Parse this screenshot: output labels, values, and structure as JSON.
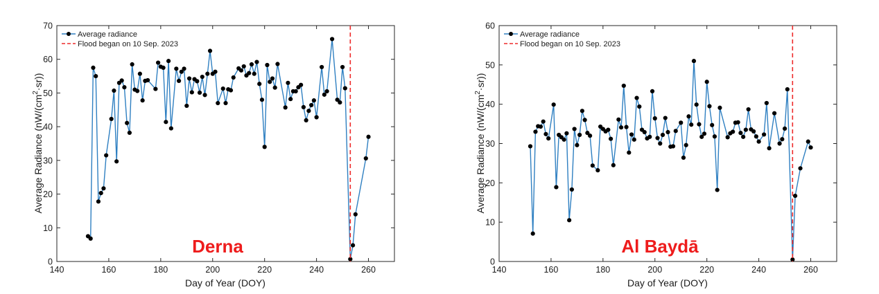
{
  "chart_data": [
    {
      "type": "line",
      "place_label": "Derna",
      "xlabel": "Day of Year (DOY)",
      "ylabel_main": "Average Radiance (nW/(cm",
      "ylabel_sup": "2",
      "ylabel_end": "·sr))",
      "xlim": [
        140,
        270
      ],
      "ylim": [
        0,
        70
      ],
      "xticks": [
        140,
        160,
        180,
        200,
        220,
        240,
        260
      ],
      "yticks": [
        0,
        10,
        20,
        30,
        40,
        50,
        60,
        70
      ],
      "legend": {
        "position": "top-left",
        "series_label": "Average radiance",
        "event_label": "Flood began on 10 Sep. 2023"
      },
      "event_x": 253,
      "series": [
        {
          "name": "Average radiance",
          "x": [
            152,
            153,
            154,
            155,
            156,
            157,
            158,
            159,
            161,
            162,
            163,
            164,
            165,
            166,
            167,
            168,
            169,
            170,
            171,
            172,
            173,
            174,
            175,
            178,
            179,
            180,
            181,
            182,
            183,
            184,
            186,
            187,
            188,
            189,
            190,
            191,
            192,
            193,
            194,
            195,
            196,
            197,
            198,
            199,
            200,
            201,
            202,
            204,
            205,
            206,
            207,
            208,
            210,
            211,
            212,
            213,
            214,
            215,
            216,
            217,
            218,
            219,
            220,
            221,
            222,
            223,
            224,
            225,
            228,
            229,
            230,
            231,
            232,
            233,
            234,
            235,
            236,
            237,
            238,
            239,
            240,
            242,
            243,
            244,
            246,
            248,
            249,
            250,
            251,
            253,
            254,
            255,
            259,
            260
          ],
          "y": [
            7.5,
            6.8,
            57.5,
            55,
            17.8,
            20.3,
            21.7,
            31.5,
            42.3,
            50.7,
            29.7,
            53,
            53.7,
            51.7,
            41.1,
            38.2,
            58.5,
            51,
            50.6,
            55.7,
            47.8,
            53.6,
            53.8,
            51.2,
            59,
            57.8,
            57.5,
            41.4,
            59.5,
            39.5,
            57.2,
            53.6,
            56.3,
            57.2,
            46.2,
            54.3,
            50.2,
            54.1,
            53.5,
            50.1,
            54.8,
            49.4,
            55.7,
            62.5,
            55.7,
            56.3,
            47,
            51.3,
            47,
            51.1,
            50.8,
            54.6,
            57.3,
            56.7,
            57.9,
            55.2,
            55.9,
            58.5,
            55.7,
            59.2,
            52.7,
            48,
            34,
            58.3,
            53.3,
            54.3,
            51.6,
            58.6,
            45.7,
            53,
            48.2,
            50.5,
            50.5,
            51.7,
            52.4,
            45.8,
            41.9,
            44.7,
            46.4,
            47.8,
            42.8,
            57.7,
            49.5,
            50.5,
            66,
            48,
            47.2,
            57.7,
            51.4,
            0.7,
            4.8,
            14,
            30.6,
            37
          ]
        }
      ]
    },
    {
      "type": "line",
      "place_label": "Al Baydā",
      "xlabel": "Day of Year (DOY)",
      "ylabel_main": "Average Radiance (nW/(cm",
      "ylabel_sup": "2",
      "ylabel_end": "·sr))",
      "xlim": [
        140,
        270
      ],
      "ylim": [
        0,
        60
      ],
      "xticks": [
        140,
        160,
        180,
        200,
        220,
        240,
        260
      ],
      "yticks": [
        0,
        10,
        20,
        30,
        40,
        50,
        60
      ],
      "legend": {
        "position": "top-left",
        "series_label": "Average radiance",
        "event_label": "Flood began on 10 Sep. 2023"
      },
      "event_x": 253,
      "series": [
        {
          "name": "Average radiance",
          "x": [
            152,
            153,
            154,
            155,
            156,
            157,
            158,
            159,
            161,
            162,
            163,
            164,
            165,
            166,
            167,
            168,
            169,
            170,
            171,
            172,
            173,
            174,
            175,
            176,
            178,
            179,
            180,
            181,
            182,
            183,
            184,
            186,
            187,
            188,
            189,
            190,
            191,
            192,
            193,
            194,
            195,
            196,
            197,
            198,
            199,
            200,
            201,
            202,
            203,
            204,
            205,
            206,
            207,
            208,
            210,
            211,
            212,
            213,
            214,
            215,
            216,
            217,
            218,
            219,
            220,
            221,
            222,
            223,
            224,
            225,
            228,
            229,
            230,
            231,
            232,
            233,
            234,
            235,
            236,
            237,
            238,
            239,
            240,
            242,
            243,
            244,
            246,
            248,
            249,
            250,
            251,
            253,
            254,
            256,
            259,
            260
          ],
          "y": [
            29.3,
            7.1,
            33,
            34.4,
            34.3,
            35.6,
            32.4,
            31.3,
            39.9,
            18.9,
            32.2,
            31.6,
            31,
            32.6,
            10.5,
            18.3,
            33.7,
            29.6,
            32.2,
            38.3,
            36,
            32.7,
            32,
            24.4,
            23.2,
            34.3,
            33.7,
            33.1,
            33.5,
            31.2,
            24.5,
            36.1,
            34.1,
            44.7,
            34.2,
            27.7,
            32.3,
            31,
            41.6,
            39.4,
            33.5,
            32.9,
            31.3,
            31.7,
            43.3,
            36.4,
            31.4,
            30,
            32.2,
            36.5,
            32.9,
            29.2,
            29.3,
            33.2,
            35.3,
            26.4,
            29.6,
            36.9,
            34.8,
            51,
            39.9,
            34.9,
            31.7,
            32.5,
            45.7,
            39.5,
            34.7,
            31.8,
            18.2,
            39.1,
            31.6,
            32.6,
            33,
            35.3,
            35.4,
            32.7,
            31.7,
            33.5,
            38.7,
            33.6,
            33.1,
            31.8,
            30.5,
            32.3,
            40.3,
            28.8,
            37.7,
            30,
            31.1,
            33.8,
            43.8,
            0.5,
            16.7,
            23.7,
            30.5,
            29
          ]
        }
      ]
    }
  ],
  "colors": {
    "line": "#2e7fc1",
    "marker": "#000000",
    "event": "#ee2a2a",
    "place": "#ee1c1c",
    "axis": "#262626"
  }
}
